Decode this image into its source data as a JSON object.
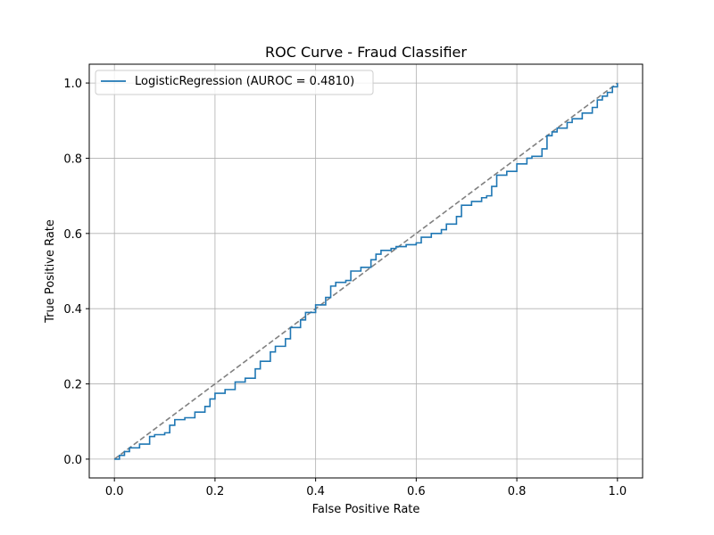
{
  "chart_data": {
    "type": "line",
    "title": "ROC Curve - Fraud Classifier",
    "xlabel": "False Positive Rate",
    "ylabel": "True Positive Rate",
    "xlim": [
      -0.05,
      1.05
    ],
    "ylim": [
      -0.05,
      1.05
    ],
    "xticks": [
      0.0,
      0.2,
      0.4,
      0.6,
      0.8,
      1.0
    ],
    "yticks": [
      0.0,
      0.2,
      0.4,
      0.6,
      0.8,
      1.0
    ],
    "xtick_labels": [
      "0.0",
      "0.2",
      "0.4",
      "0.6",
      "0.8",
      "1.0"
    ],
    "ytick_labels": [
      "0.0",
      "0.2",
      "0.4",
      "0.6",
      "0.8",
      "1.0"
    ],
    "grid": true,
    "legend_position": "top-left",
    "series": [
      {
        "name": "LogisticRegression (AUROC = 0.4810)",
        "color": "#1f77b4",
        "style": "solid",
        "x": [
          0.0,
          0.01,
          0.02,
          0.03,
          0.05,
          0.07,
          0.08,
          0.1,
          0.11,
          0.12,
          0.14,
          0.16,
          0.18,
          0.19,
          0.2,
          0.22,
          0.24,
          0.26,
          0.28,
          0.29,
          0.31,
          0.32,
          0.34,
          0.35,
          0.37,
          0.38,
          0.4,
          0.41,
          0.42,
          0.43,
          0.44,
          0.46,
          0.47,
          0.49,
          0.51,
          0.52,
          0.53,
          0.55,
          0.56,
          0.58,
          0.6,
          0.61,
          0.63,
          0.65,
          0.66,
          0.68,
          0.69,
          0.71,
          0.73,
          0.74,
          0.75,
          0.76,
          0.78,
          0.8,
          0.82,
          0.83,
          0.85,
          0.86,
          0.87,
          0.88,
          0.9,
          0.91,
          0.93,
          0.95,
          0.96,
          0.97,
          0.98,
          0.99,
          1.0
        ],
        "y": [
          0.0,
          0.01,
          0.02,
          0.03,
          0.04,
          0.06,
          0.065,
          0.07,
          0.09,
          0.105,
          0.11,
          0.125,
          0.14,
          0.16,
          0.175,
          0.185,
          0.205,
          0.215,
          0.24,
          0.26,
          0.285,
          0.3,
          0.32,
          0.35,
          0.37,
          0.39,
          0.41,
          0.41,
          0.43,
          0.46,
          0.47,
          0.475,
          0.5,
          0.51,
          0.53,
          0.545,
          0.555,
          0.56,
          0.565,
          0.57,
          0.575,
          0.59,
          0.6,
          0.61,
          0.625,
          0.645,
          0.675,
          0.685,
          0.695,
          0.7,
          0.725,
          0.755,
          0.765,
          0.785,
          0.8,
          0.805,
          0.825,
          0.86,
          0.87,
          0.88,
          0.895,
          0.905,
          0.92,
          0.935,
          0.955,
          0.965,
          0.975,
          0.99,
          1.0
        ]
      },
      {
        "name": "",
        "color": "#808080",
        "style": "dashed",
        "x": [
          0.0,
          1.0
        ],
        "y": [
          0.0,
          1.0
        ]
      }
    ]
  }
}
